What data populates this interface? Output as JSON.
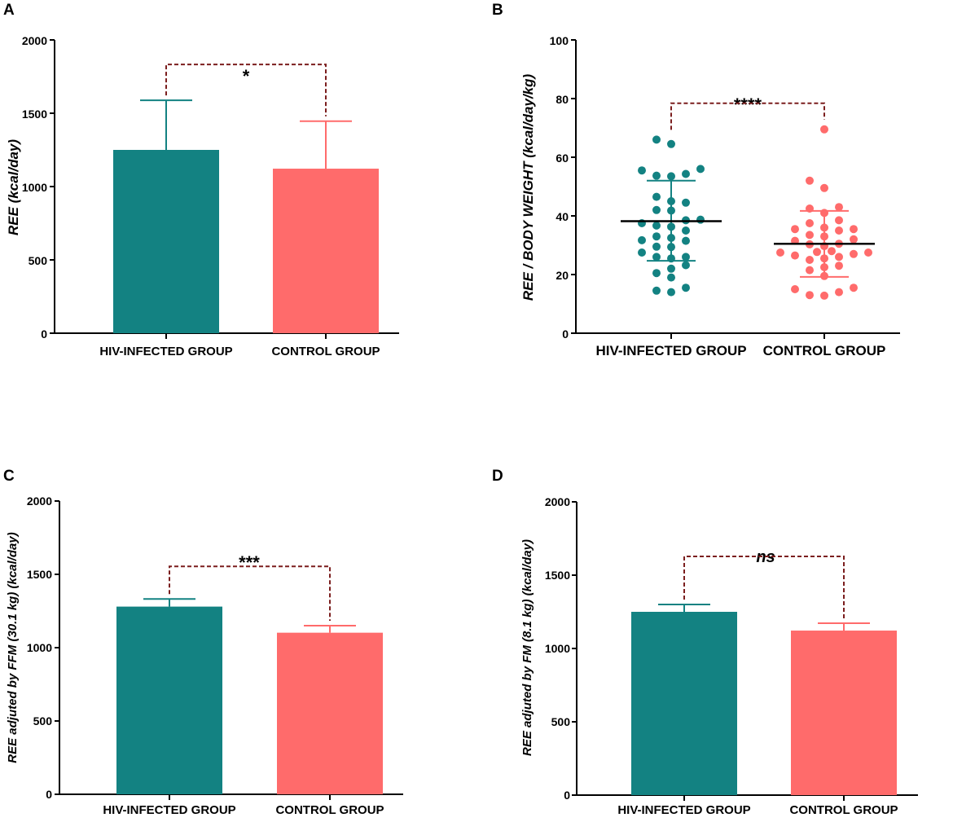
{
  "colors": {
    "hiv": "#138282",
    "control": "#FF6B6B",
    "bracket": "#7b1e1e",
    "median": "#000000"
  },
  "chart_data": [
    {
      "panel": "A",
      "type": "bar",
      "categories": [
        "HIV-INFECTED GROUP",
        "CONTROL GROUP"
      ],
      "values": [
        1250,
        1122
      ],
      "errors_upper": [
        1588,
        1446
      ],
      "ylabel": "REE (kcal/day)",
      "ylim": [
        0,
        2000
      ],
      "yticks": [
        "0",
        "500",
        "1000",
        "1500",
        "2000"
      ],
      "significance": "*"
    },
    {
      "panel": "B",
      "type": "scatter",
      "categories": [
        "HIV-INFECTED GROUP",
        "CONTROL GROUP"
      ],
      "ylabel": "REE / BODY WEIGHT (kcal/day/kg)",
      "ylim": [
        0,
        100
      ],
      "yticks": [
        "0",
        "20",
        "40",
        "60",
        "80",
        "100"
      ],
      "medians": [
        38.2,
        30.5
      ],
      "whisker_low": [
        24.7,
        19.2
      ],
      "whisker_high": [
        52.0,
        41.7
      ],
      "significance": "****",
      "series": [
        {
          "name": "HIV-INFECTED GROUP",
          "values": [
            66,
            64.5,
            56,
            55.5,
            54.3,
            53.7,
            53.5,
            46.5,
            45,
            44.5,
            42,
            41.8,
            38.7,
            38.5,
            37.5,
            36.7,
            36.3,
            35,
            33,
            32.5,
            31.7,
            31.5,
            29.5,
            29.4,
            27.5,
            26,
            26,
            25.5,
            23.2,
            22,
            20.5,
            19,
            15.5,
            14.5,
            14
          ]
        },
        {
          "name": "CONTROL GROUP",
          "values": [
            69.5,
            52,
            49.5,
            43,
            42.5,
            41,
            38.5,
            37.5,
            36,
            35.5,
            35.5,
            35,
            33.5,
            33,
            32,
            31.5,
            30.5,
            30.3,
            29.7,
            28,
            27.7,
            27.5,
            27.5,
            27,
            26.5,
            26,
            25.5,
            25,
            23,
            22.5,
            21.5,
            19.5,
            15.5,
            15,
            14,
            13,
            12.8
          ]
        }
      ]
    },
    {
      "panel": "C",
      "type": "bar",
      "categories": [
        "HIV-INFECTED GROUP",
        "CONTROL GROUP"
      ],
      "values": [
        1280,
        1102
      ],
      "errors_upper": [
        1332,
        1150
      ],
      "ylabel": "REE  adjuted by FFM (30.1 kg) (kcal/day)",
      "ylim": [
        0,
        2000
      ],
      "yticks": [
        "0",
        "500",
        "1000",
        "1500",
        "2000"
      ],
      "significance": "***"
    },
    {
      "panel": "D",
      "type": "bar",
      "categories": [
        "HIV-INFECTED GROUP",
        "CONTROL GROUP"
      ],
      "values": [
        1250,
        1122
      ],
      "errors_upper": [
        1300,
        1172
      ],
      "ylabel": "REE  adjuted by FM (8.1 kg) (kcal/day)",
      "ylim": [
        0,
        2000
      ],
      "yticks": [
        "0",
        "500",
        "1000",
        "1500",
        "2000"
      ],
      "significance": "ns"
    }
  ]
}
